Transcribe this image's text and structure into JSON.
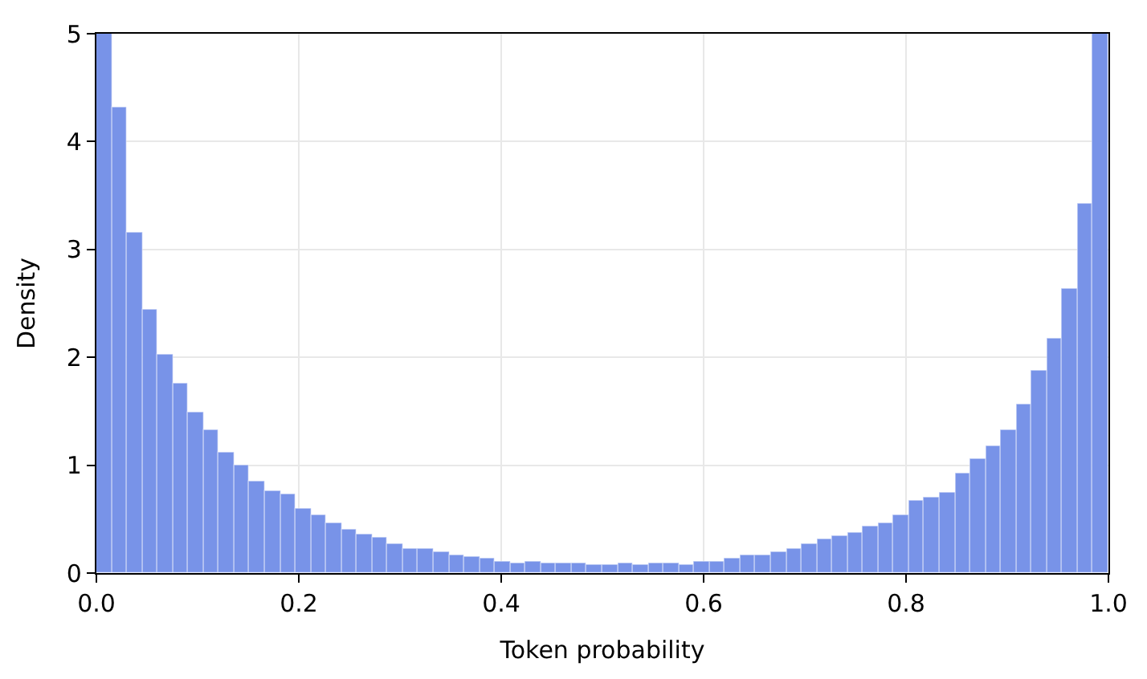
{
  "chart_data": {
    "type": "histogram",
    "xlabel": "Token probability",
    "ylabel": "Density",
    "bins": [
      0,
      0.0152,
      0.0303,
      0.0455,
      0.0606,
      0.0758,
      0.0909,
      0.1061,
      0.1212,
      0.1364,
      0.1515,
      0.1667,
      0.1818,
      0.197,
      0.2121,
      0.2273,
      0.2424,
      0.2576,
      0.2727,
      0.2879,
      0.303,
      0.3182,
      0.3333,
      0.3485,
      0.3636,
      0.3788,
      0.3939,
      0.4091,
      0.4242,
      0.4394,
      0.4545,
      0.4697,
      0.4848,
      0.5,
      0.5152,
      0.5303,
      0.5455,
      0.5606,
      0.5758,
      0.5909,
      0.6061,
      0.6212,
      0.6364,
      0.6515,
      0.6667,
      0.6818,
      0.697,
      0.7121,
      0.7273,
      0.7424,
      0.7576,
      0.7727,
      0.7879,
      0.803,
      0.8182,
      0.8333,
      0.8485,
      0.8636,
      0.8788,
      0.8939,
      0.9091,
      0.9242,
      0.9394,
      0.9545,
      0.9697,
      0.9848,
      1
    ],
    "values": [
      5,
      4.32,
      3.16,
      2.44,
      2.03,
      1.76,
      1.49,
      1.32,
      1.11,
      0.99,
      0.85,
      0.76,
      0.73,
      0.59,
      0.53,
      0.46,
      0.4,
      0.35,
      0.33,
      0.27,
      0.23,
      0.22,
      0.19,
      0.17,
      0.15,
      0.14,
      0.11,
      0.09,
      0.1,
      0.09,
      0.09,
      0.09,
      0.08,
      0.07,
      0.09,
      0.08,
      0.09,
      0.09,
      0.08,
      0.1,
      0.11,
      0.14,
      0.17,
      0.17,
      0.2,
      0.22,
      0.27,
      0.31,
      0.34,
      0.37,
      0.43,
      0.46,
      0.54,
      0.67,
      0.7,
      0.75,
      0.93,
      1.06,
      1.17,
      1.32,
      1.57,
      1.87,
      2.18,
      2.64,
      3.43,
      5
    ],
    "color": "#7893e8",
    "xlim": [
      0,
      1
    ],
    "xticks": [
      {
        "value": 0,
        "label": "0.0"
      },
      0.2,
      0.4,
      0.6,
      0.8,
      {
        "value": 1,
        "label": "1.0"
      }
    ],
    "ylim": [
      0,
      5
    ],
    "yticks": [
      0,
      1,
      2,
      3,
      4,
      5
    ],
    "grid": true
  }
}
